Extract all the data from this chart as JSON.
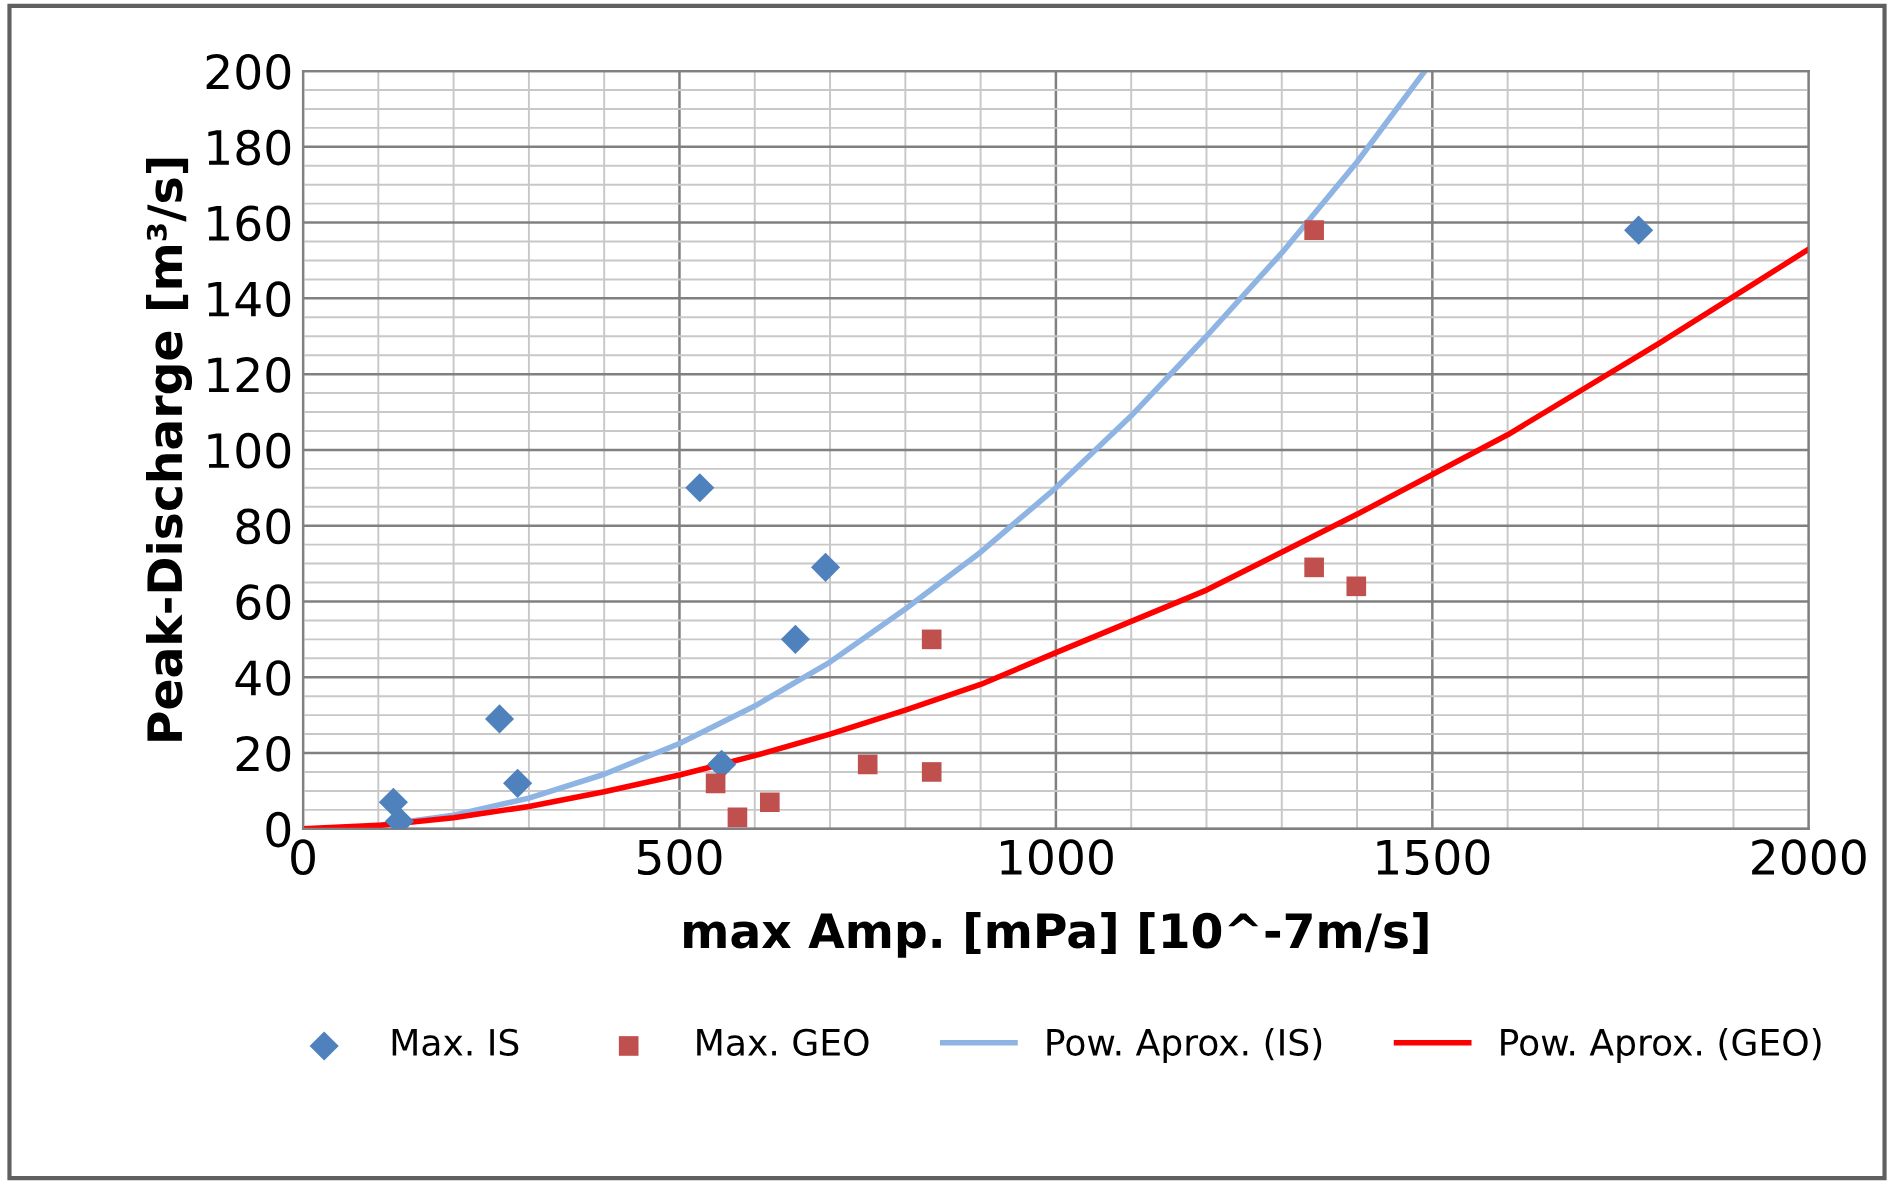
{
  "chart_data": {
    "type": "scatter",
    "xlabel": "max Amp. [mPa] [10^-7m/s]",
    "ylabel": "Peak-Discharge [m³/s]",
    "xlim": [
      0,
      2000
    ],
    "xticks": [
      0,
      500,
      1000,
      1500,
      2000
    ],
    "ylim": [
      0,
      200
    ],
    "yticks": [
      0,
      20,
      40,
      60,
      80,
      100,
      120,
      140,
      160,
      180,
      200
    ],
    "grid": true,
    "legend": "bottom",
    "series": [
      {
        "name": "Max. IS",
        "marker": "diamond",
        "color": "#4f81bd",
        "x": [
          120,
          128,
          261,
          285,
          527,
          556,
          654,
          694,
          1774
        ],
        "values": [
          7,
          2,
          29,
          12,
          90,
          17,
          50,
          69,
          158
        ]
      },
      {
        "name": "Max. GEO",
        "marker": "square",
        "color": "#c0504d",
        "x": [
          548,
          577,
          620,
          750,
          835,
          835,
          1343,
          1343,
          1399
        ],
        "values": [
          12,
          3,
          7,
          17,
          15,
          50,
          158,
          69,
          64
        ]
      },
      {
        "name": "Pow. Aprox. (IS)",
        "type": "line",
        "marker": "none",
        "color": "#8eb4e3",
        "x": [
          100,
          200,
          300,
          400,
          500,
          600,
          700,
          800,
          900,
          1000,
          1100,
          1200,
          1300,
          1400,
          1490
        ],
        "values": [
          0.9,
          3.6,
          8.1,
          14.4,
          22.5,
          32.4,
          44,
          58,
          73,
          90,
          109,
          130,
          152,
          176,
          200
        ]
      },
      {
        "name": "Pow. Aprox. (GEO)",
        "type": "line",
        "marker": "none",
        "color": "#ff0000",
        "x": [
          0,
          100,
          200,
          300,
          400,
          500,
          600,
          700,
          800,
          900,
          1000,
          1200,
          1400,
          1600,
          1800,
          2000
        ],
        "values": [
          0,
          0.9,
          2.9,
          5.9,
          9.8,
          14.2,
          19.3,
          25,
          31.3,
          38.1,
          46.5,
          63,
          83,
          104,
          128,
          153
        ]
      }
    ]
  }
}
